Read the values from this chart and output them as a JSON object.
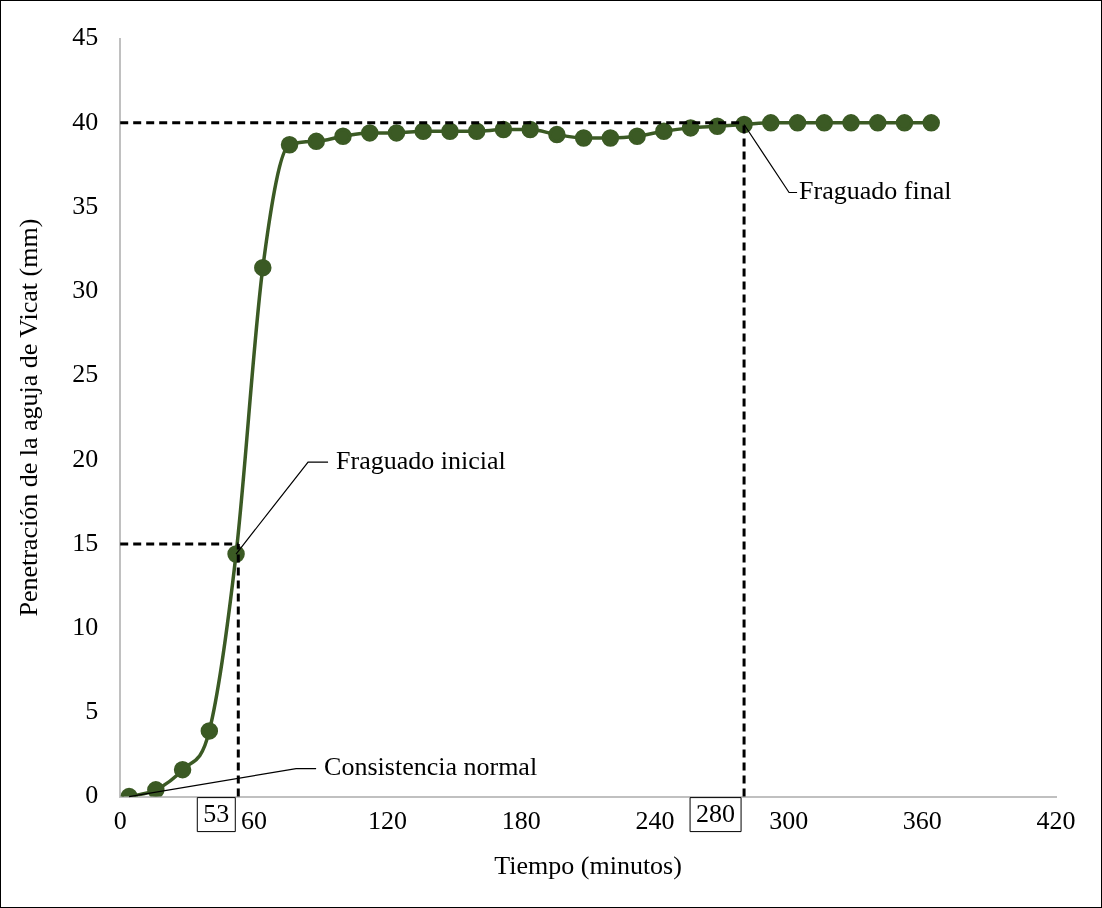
{
  "chart_data": {
    "type": "line",
    "xlabel": "Tiempo (minutos)",
    "ylabel": "Penetración de la aguja de Vicat (mm)",
    "x": [
      4,
      16,
      28,
      40,
      52,
      64,
      76,
      88,
      100,
      112,
      124,
      136,
      148,
      160,
      172,
      184,
      196,
      208,
      220,
      232,
      244,
      256,
      268,
      280,
      292,
      304,
      316,
      328,
      340,
      352,
      364
    ],
    "series": [
      {
        "color": "#3b5a24",
        "values": [
          0,
          0.4,
          1.6,
          3.9,
          14.4,
          31.4,
          38.7,
          38.9,
          39.2,
          39.4,
          39.4,
          39.5,
          39.5,
          39.5,
          39.6,
          39.6,
          39.3,
          39.1,
          39.1,
          39.2,
          39.5,
          39.7,
          39.8,
          39.9,
          40,
          40,
          40,
          40,
          40,
          40,
          40
        ]
      }
    ],
    "xlim": [
      0,
      420
    ],
    "xticks": [
      0,
      60,
      120,
      180,
      240,
      300,
      360,
      420
    ],
    "ylim": [
      0,
      45
    ],
    "yticks": [
      0,
      5,
      10,
      15,
      20,
      25,
      30,
      35,
      40,
      45
    ],
    "ref_lines": [
      {
        "axis": "x",
        "value": 53,
        "label": "53",
        "color": "#000000",
        "line_style": "dashed"
      },
      {
        "axis": "x",
        "value": 280,
        "label": "280",
        "color": "#000000",
        "line_style": "dashed"
      },
      {
        "axis": "y",
        "value": 15,
        "color": "#000000",
        "line_style": "dashed"
      },
      {
        "axis": "y",
        "value": 40,
        "color": "#000000",
        "line_style": "dashed"
      }
    ],
    "annotations": [
      {
        "text": "Fraguado inicial",
        "x": 52,
        "y": 14.4
      },
      {
        "text": "Consistencia normal",
        "x": 4,
        "y": 0
      },
      {
        "text": "Fraguado final",
        "x": 280,
        "y": 39.9
      }
    ],
    "grid": false,
    "legend": false,
    "marker": "circle",
    "line_style": "solid"
  }
}
